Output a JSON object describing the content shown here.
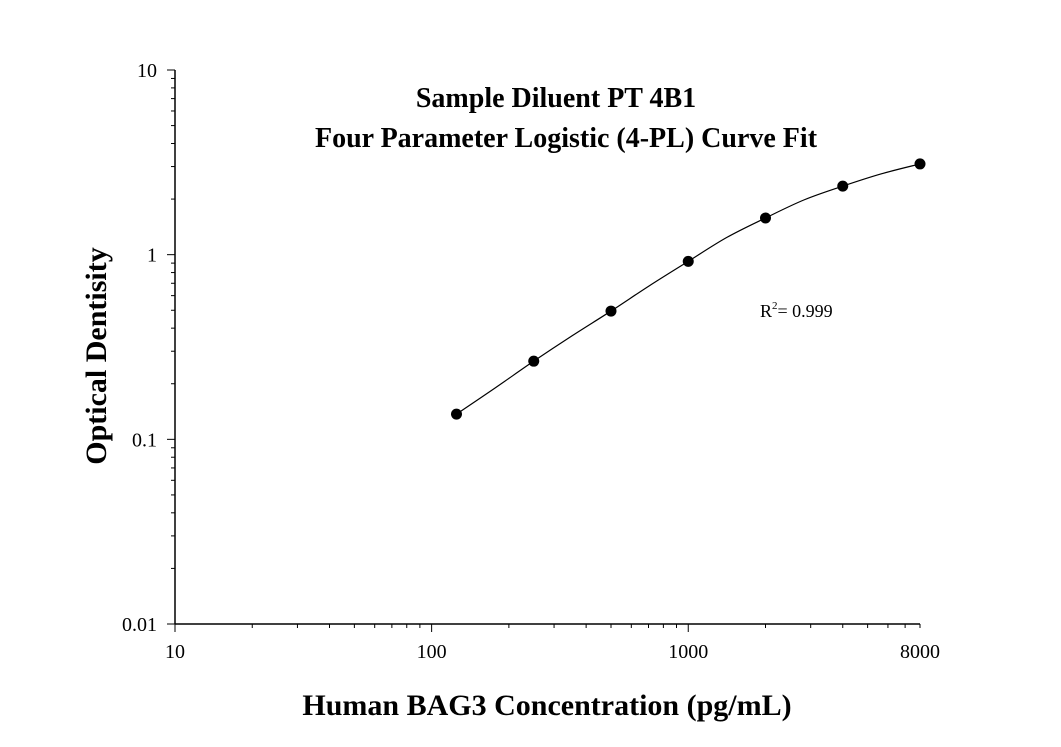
{
  "chart_data": {
    "type": "scatter",
    "title": [
      "Sample Diluent PT 4B1",
      "Four Parameter Logistic (4-PL) Curve Fit"
    ],
    "xlabel": "Human BAG3 Concentration (pg/mL)",
    "ylabel": "Optical Dentisity",
    "x_scale": "log",
    "y_scale": "log",
    "xlim": [
      10,
      8000
    ],
    "ylim": [
      0.01,
      10
    ],
    "x_ticks": [
      {
        "value": 10,
        "label": "10"
      },
      {
        "value": 100,
        "label": "100"
      },
      {
        "value": 1000,
        "label": "1000"
      },
      {
        "value": 8000,
        "label": "8000"
      }
    ],
    "y_ticks": [
      {
        "value": 10,
        "label": "10"
      },
      {
        "value": 1,
        "label": "1"
      },
      {
        "value": 0.1,
        "label": "0.1"
      },
      {
        "value": 0.01,
        "label": "0.01"
      }
    ],
    "series": [
      {
        "x": [
          125,
          250,
          500,
          1000,
          2000,
          4000,
          8000
        ],
        "y": [
          0.137,
          0.265,
          0.495,
          0.92,
          1.58,
          2.35,
          3.1
        ]
      }
    ],
    "fit_curve": {
      "model": "4-PL",
      "x": [
        125,
        177,
        250,
        354,
        500,
        707,
        1000,
        1414,
        2000,
        2828,
        4000,
        5657,
        8000
      ],
      "y": [
        0.137,
        0.19,
        0.265,
        0.365,
        0.495,
        0.68,
        0.92,
        1.24,
        1.58,
        1.98,
        2.35,
        2.74,
        3.1
      ]
    },
    "annotation": {
      "r_label": "R",
      "r_sup": "2",
      "r_text": "= 0.999"
    },
    "grid": false,
    "legend": "none",
    "colors": {
      "marker": "#000000",
      "line": "#000000",
      "axis": "#000000"
    }
  }
}
